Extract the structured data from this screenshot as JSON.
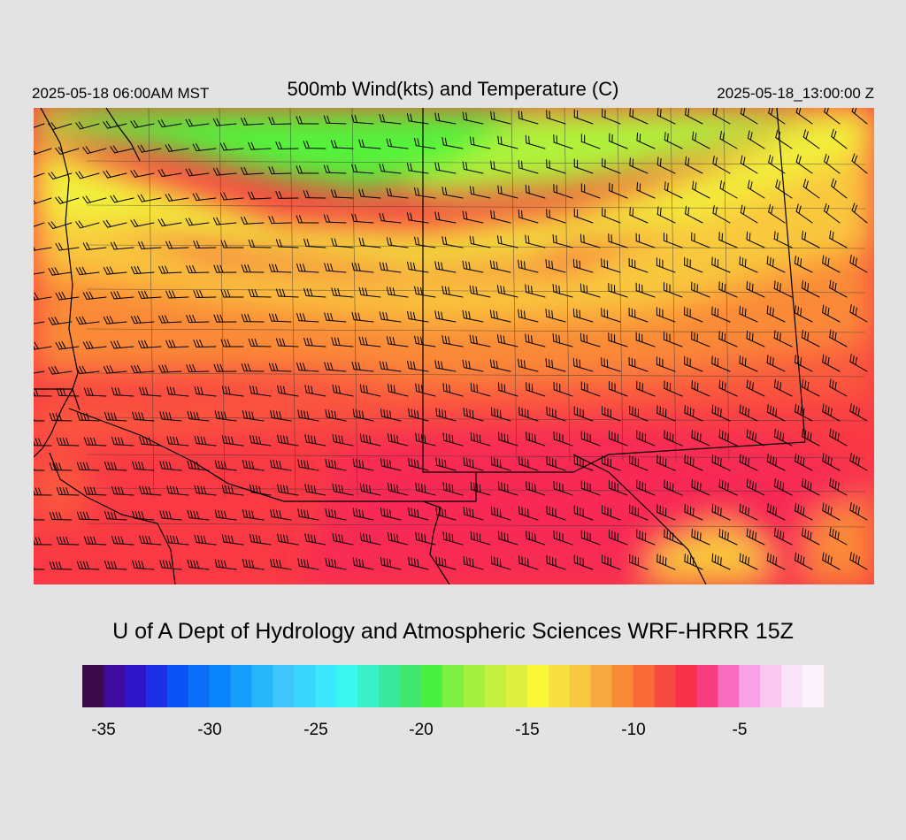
{
  "header": {
    "local_time": "2025-05-18 06:00AM MST",
    "title": "500mb Wind(kts) and Temperature (C)",
    "valid_time_utc": "2025-05-18_13:00:00 Z"
  },
  "footer": {
    "credit": "U of A Dept of Hydrology and Atmospheric Sciences WRF-HRRR 15Z"
  },
  "legend": {
    "tick_labels": [
      "-35",
      "-30",
      "-25",
      "-20",
      "-15",
      "-10",
      "-5"
    ],
    "swatches": [
      "#3b0a4a",
      "#3f0a9e",
      "#2f14c8",
      "#1e30e6",
      "#0a52f5",
      "#0a6ef8",
      "#0a86fa",
      "#159efb",
      "#28b6fb",
      "#3cc6fc",
      "#38d6fd",
      "#3ce8fd",
      "#3af8f0",
      "#38f0c8",
      "#3ae8a0",
      "#40e870",
      "#4af040",
      "#7ef040",
      "#a6f040",
      "#c6f040",
      "#e0f040",
      "#f8f838",
      "#f8e040",
      "#f8c840",
      "#f8a840",
      "#f88a38",
      "#f86a38",
      "#f84a40",
      "#f8304a",
      "#f83c80",
      "#f86cc0",
      "#f8a0e8",
      "#f8c8f0",
      "#f8e4f8",
      "#fbf2fb"
    ]
  },
  "map": {
    "bg": "#dcdcdc",
    "colors": {
      "green": "#55f23a",
      "lime": "#b0f23a",
      "yellow": "#f2f23a",
      "gold": "#f9c83c",
      "orange": "#fa8a38",
      "red_orange": "#fa5a3c",
      "red": "#f93a44",
      "crimson": "#f82b55"
    },
    "barb_color": "#000000",
    "border_color": "#000000",
    "county_color": "#333333"
  }
}
